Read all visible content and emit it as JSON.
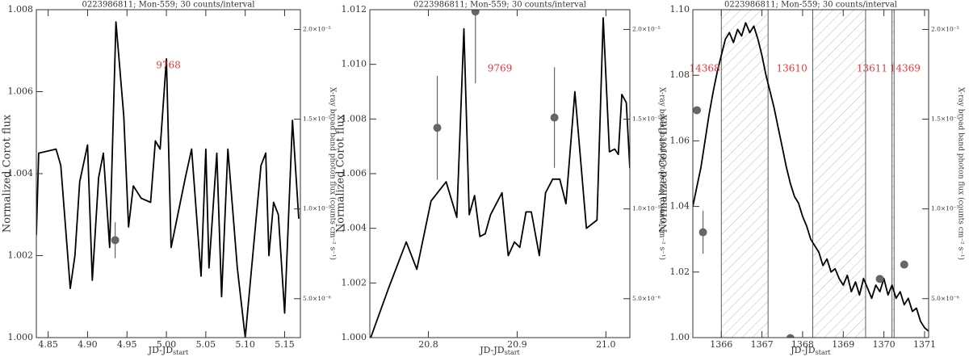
{
  "chart_data": [
    {
      "type": "line",
      "title": "0223986811; Mon-559; 30 counts/interval",
      "xlabel": "JD-JD",
      "xlabel_sub": "start",
      "ylabel": "Normalized Corot flux",
      "y2label": "X-ray broad band photon flux (counts cm⁻² s⁻¹)",
      "xlim": [
        4.835,
        5.17
      ],
      "xticks": [
        4.85,
        {
          "value": 4.9,
          "label": "4.90"
        },
        4.95,
        {
          "value": 5,
          "label": "5.00"
        },
        5.05,
        {
          "value": 5.1,
          "label": "5.10"
        },
        5.15
      ],
      "ylim": [
        1,
        1.008
      ],
      "yticks": [
        {
          "value": 1,
          "label": "1.000"
        },
        1.002,
        1.004,
        1.006,
        1.008
      ],
      "y2lim": [
        2.83e-06,
        2.11e-05
      ],
      "y2ticks": [
        {
          "value": 5e-06,
          "label": "5.0×10⁻⁶"
        },
        {
          "value": 1e-05,
          "label": "1.0×10⁻⁵"
        },
        {
          "value": 1.5e-05,
          "label": "1.5×10⁻⁵"
        },
        {
          "value": 2e-05,
          "label": "2.0×10⁻⁵"
        }
      ],
      "line": {
        "color": "#000000",
        "x": [
          4.835,
          4.838,
          4.86,
          4.866,
          4.878,
          4.884,
          4.89,
          4.9,
          4.906,
          4.914,
          4.92,
          4.928,
          4.936,
          4.946,
          4.952,
          4.958,
          4.968,
          4.98,
          4.986,
          4.992,
          5.0,
          5.006,
          5.024,
          5.032,
          5.044,
          5.05,
          5.054,
          5.064,
          5.07,
          5.078,
          5.09,
          5.1,
          5.12,
          5.126,
          5.13,
          5.136,
          5.142,
          5.15,
          5.16,
          5.168
        ],
        "y": [
          1.0025,
          1.0045,
          1.0046,
          1.0042,
          1.0012,
          1.002,
          1.0038,
          1.0047,
          1.0014,
          1.0039,
          1.0045,
          1.0022,
          1.0077,
          1.0054,
          1.0027,
          1.0037,
          1.0034,
          1.0033,
          1.0048,
          1.0046,
          1.0068,
          1.0022,
          1.0039,
          1.0046,
          1.0015,
          1.0046,
          1.0017,
          1.0045,
          1.001,
          1.0046,
          1.0017,
          1.0,
          1.0042,
          1.0045,
          1.002,
          1.0033,
          1.003,
          1.0006,
          1.0053,
          1.0029
        ]
      },
      "points": {
        "color": "#666666",
        "axis": "y2",
        "x": [
          4.935
        ],
        "y": [
          8.26e-06
        ],
        "error": [
          1e-06
        ]
      },
      "annotations": [
        "9768"
      ],
      "annotation_color": "#e8383d"
    },
    {
      "type": "line",
      "title": "0223986811; Mon-559; 30 counts/interval",
      "xlabel": "JD-JD",
      "xlabel_sub": "start",
      "ylabel": "Normalized Corot flux",
      "y2label": "X-ray broad band photon flux (counts cm⁻² s⁻¹)",
      "xlim": [
        20.734,
        21.027
      ],
      "xticks": [
        20.8,
        20.9,
        {
          "value": 21,
          "label": "21.0"
        }
      ],
      "ylim": [
        1,
        1.012
      ],
      "yticks": [
        {
          "value": 1,
          "label": "1.000"
        },
        1.002,
        1.004,
        1.006,
        1.008,
        {
          "value": 1.01,
          "label": "1.010"
        },
        1.012
      ],
      "y2lim": [
        2.83e-06,
        2.11e-05
      ],
      "y2ticks": [
        {
          "value": 5e-06,
          "label": "5.0×10⁻⁶"
        },
        {
          "value": 1e-05,
          "label": "1.0×10⁻⁵"
        },
        {
          "value": 1.5e-05,
          "label": "1.5×10⁻⁵"
        },
        {
          "value": 2e-05,
          "label": "2.0×10⁻⁵"
        }
      ],
      "line": {
        "color": "#000000",
        "x": [
          20.735,
          20.755,
          20.775,
          20.787,
          20.803,
          20.82,
          20.832,
          20.84,
          20.846,
          20.852,
          20.858,
          20.864,
          20.87,
          20.883,
          20.89,
          20.897,
          20.903,
          20.91,
          20.916,
          20.925,
          20.932,
          20.94,
          20.948,
          20.955,
          20.965,
          20.978,
          20.99,
          20.997,
          21.004,
          21.01,
          21.014,
          21.018,
          21.023,
          21.027
        ],
        "y": [
          1.0,
          1.0018,
          1.0035,
          1.0025,
          1.005,
          1.0057,
          1.0044,
          1.0113,
          1.0045,
          1.0052,
          1.0037,
          1.0038,
          1.0045,
          1.0053,
          1.003,
          1.0035,
          1.0033,
          1.0046,
          1.0046,
          1.003,
          1.0053,
          1.0058,
          1.0058,
          1.0049,
          1.009,
          1.004,
          1.0043,
          1.0117,
          1.0068,
          1.0069,
          1.0067,
          1.0089,
          1.0086,
          1.0062
        ]
      },
      "points": {
        "color": "#666666",
        "axis": "y2",
        "x": [
          20.81,
          20.853,
          20.942
        ],
        "y": [
          1.452e-05,
          2.1e-05,
          1.509e-05
        ],
        "error": [
          2.9e-06,
          4e-06,
          2.8e-06
        ]
      },
      "annotations": [
        "9769"
      ],
      "annotation_color": "#e8383d"
    },
    {
      "type": "line",
      "title": "0223986811; Mon-559; 30 counts/interval",
      "xlabel": "JD-JD",
      "xlabel_sub": "start",
      "ylabel": "Normalized Corot flux",
      "y2label": "X-ray broad band photon flux (counts cm⁻² s⁻¹)",
      "xlim": [
        1365.3,
        1371.1
      ],
      "xticks": [
        1366,
        1367,
        1368,
        1369,
        1370,
        1371
      ],
      "ylim": [
        1,
        1.1
      ],
      "yticks": [
        {
          "value": 1,
          "label": "1.00"
        },
        1.02,
        1.04,
        1.06,
        1.08,
        {
          "value": 1.1,
          "label": "1.10"
        }
      ],
      "y2lim": [
        2.83e-06,
        2.11e-05
      ],
      "y2ticks": [
        {
          "value": 5e-06,
          "label": "5.0×10⁻⁶"
        },
        {
          "value": 1e-05,
          "label": "1.0×10⁻⁵"
        },
        {
          "value": 1.5e-05,
          "label": "1.5×10⁻⁵"
        },
        {
          "value": 2e-05,
          "label": "2.0×10⁻⁵"
        }
      ],
      "shaded_regions": [
        [
          1366.0,
          1367.15
        ],
        [
          1368.25,
          1369.55
        ],
        [
          1370.2,
          1370.25
        ]
      ],
      "line": {
        "color": "#000000",
        "x": [
          1365.3,
          1365.4,
          1365.5,
          1365.6,
          1365.7,
          1365.8,
          1365.9,
          1366.0,
          1366.1,
          1366.2,
          1366.3,
          1366.4,
          1366.5,
          1366.6,
          1366.7,
          1366.8,
          1366.9,
          1367.0,
          1367.1,
          1367.2,
          1367.3,
          1367.4,
          1367.5,
          1367.6,
          1367.7,
          1367.8,
          1367.9,
          1368.0,
          1368.1,
          1368.2,
          1368.3,
          1368.4,
          1368.5,
          1368.6,
          1368.7,
          1368.8,
          1368.9,
          1369.0,
          1369.1,
          1369.2,
          1369.3,
          1369.4,
          1369.5,
          1369.6,
          1369.7,
          1369.8,
          1369.9,
          1370.0,
          1370.1,
          1370.2,
          1370.3,
          1370.4,
          1370.5,
          1370.6,
          1370.7,
          1370.8,
          1370.9,
          1371.0,
          1371.1
        ],
        "y": [
          1.04,
          1.046,
          1.052,
          1.06,
          1.068,
          1.075,
          1.081,
          1.086,
          1.091,
          1.093,
          1.09,
          1.094,
          1.092,
          1.096,
          1.093,
          1.095,
          1.091,
          1.086,
          1.08,
          1.075,
          1.07,
          1.064,
          1.058,
          1.052,
          1.047,
          1.043,
          1.041,
          1.037,
          1.034,
          1.03,
          1.028,
          1.026,
          1.022,
          1.024,
          1.02,
          1.021,
          1.018,
          1.016,
          1.019,
          1.014,
          1.017,
          1.013,
          1.018,
          1.015,
          1.012,
          1.016,
          1.014,
          1.018,
          1.013,
          1.016,
          1.012,
          1.014,
          1.01,
          1.012,
          1.008,
          1.009,
          1.005,
          1.003,
          1.002
        ]
      },
      "points": {
        "color": "#666666",
        "axis": "y2",
        "x": [
          1365.4,
          1365.55,
          1367.7,
          1369.9,
          1370.5
        ],
        "y": [
          1.55e-05,
          8.7e-06,
          2.8e-06,
          6.1e-06,
          6.9e-06
        ],
        "error": [
          0,
          1.2e-06,
          0,
          0,
          0
        ]
      },
      "annotations": [
        "14368",
        "13610",
        "13611",
        "14369"
      ],
      "annotation_color": "#e8383d"
    }
  ]
}
